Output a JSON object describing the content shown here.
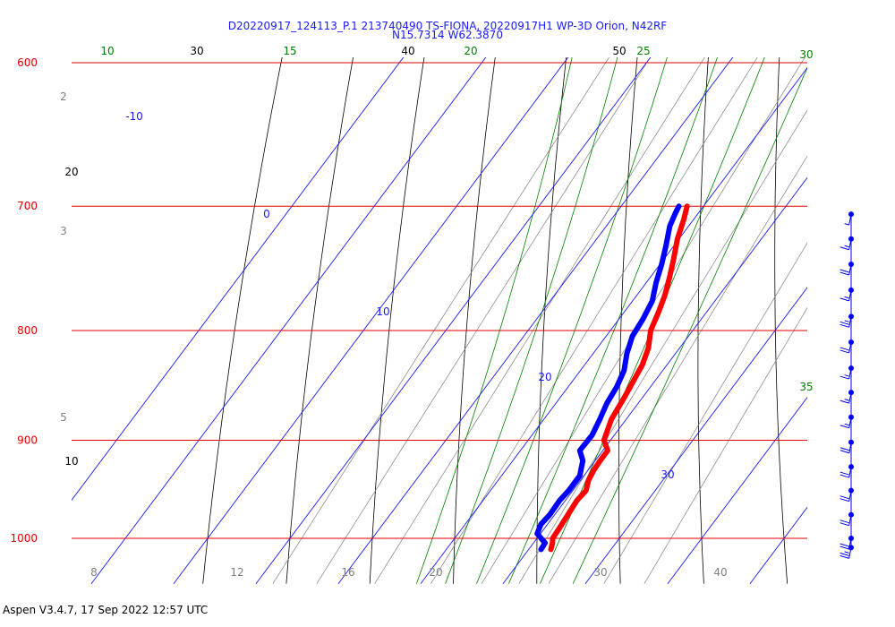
{
  "chart_data": {
    "type": "line",
    "title_line1": "D20220917_124113_P.1 213740490 TS-FIONA, 20220917H1 WP-3D Orion, N42RF",
    "title_line2": "N15.7314 W62.3870",
    "pressure_levels": [
      {
        "label": "600",
        "value": 600
      },
      {
        "label": "700",
        "value": 700
      },
      {
        "label": "800",
        "value": 800
      },
      {
        "label": "900",
        "value": 900
      },
      {
        "label": "1000",
        "value": 1000
      }
    ],
    "temperature_isotherm_labels": [
      {
        "label": "-10",
        "value": -10
      },
      {
        "label": "0",
        "value": 0
      },
      {
        "label": "10",
        "value": 10
      },
      {
        "label": "20",
        "value": 20
      },
      {
        "label": "30",
        "value": 30
      }
    ],
    "dry_adiabat_labels": [
      {
        "label": "10",
        "value": 10
      },
      {
        "label": "20",
        "value": 20
      },
      {
        "label": "30",
        "value": 30
      },
      {
        "label": "40",
        "value": 40
      },
      {
        "label": "50",
        "value": 50
      }
    ],
    "moist_adiabat_labels": [
      {
        "label": "10",
        "value": 10
      },
      {
        "label": "15",
        "value": 15
      },
      {
        "label": "20",
        "value": 20
      },
      {
        "label": "25",
        "value": 25
      },
      {
        "label": "30",
        "value": 30
      },
      {
        "label": "35",
        "value": 35
      }
    ],
    "mixing_ratio_labels": [
      {
        "label": "2",
        "value": 2
      },
      {
        "label": "3",
        "value": 3
      },
      {
        "label": "5",
        "value": 5
      },
      {
        "label": "8",
        "value": 8
      },
      {
        "label": "12",
        "value": 12
      },
      {
        "label": "16",
        "value": 16
      },
      {
        "label": "20",
        "value": 20
      },
      {
        "label": "30",
        "value": 30
      },
      {
        "label": "40",
        "value": 40
      }
    ],
    "series": [
      {
        "color": "#ff0000",
        "points": [
          {
            "p": 1012,
            "t": 22.7
          },
          {
            "p": 1005,
            "t": 22.3
          },
          {
            "p": 1000,
            "t": 21.9
          },
          {
            "p": 990,
            "t": 21.8
          },
          {
            "p": 975,
            "t": 21.6
          },
          {
            "p": 960,
            "t": 21.4
          },
          {
            "p": 950,
            "t": 21.6
          },
          {
            "p": 940,
            "t": 21.0
          },
          {
            "p": 930,
            "t": 20.7
          },
          {
            "p": 920,
            "t": 20.6
          },
          {
            "p": 910,
            "t": 20.6
          },
          {
            "p": 900,
            "t": 19.2
          },
          {
            "p": 880,
            "t": 18.2
          },
          {
            "p": 860,
            "t": 17.8
          },
          {
            "p": 845,
            "t": 17.4
          },
          {
            "p": 830,
            "t": 17.0
          },
          {
            "p": 815,
            "t": 16.2
          },
          {
            "p": 800,
            "t": 14.9
          },
          {
            "p": 785,
            "t": 14.2
          },
          {
            "p": 770,
            "t": 13.4
          },
          {
            "p": 755,
            "t": 12.3
          },
          {
            "p": 740,
            "t": 11.1
          },
          {
            "p": 725,
            "t": 9.8
          },
          {
            "p": 710,
            "t": 8.8
          },
          {
            "p": 700,
            "t": 8.0
          }
        ]
      },
      {
        "color": "#0000ff",
        "points": [
          {
            "p": 1012,
            "t": 21.5
          },
          {
            "p": 1005,
            "t": 21.4
          },
          {
            "p": 995,
            "t": 19.6
          },
          {
            "p": 985,
            "t": 19.2
          },
          {
            "p": 975,
            "t": 19.4
          },
          {
            "p": 960,
            "t": 19.3
          },
          {
            "p": 950,
            "t": 19.5
          },
          {
            "p": 935,
            "t": 19.5
          },
          {
            "p": 920,
            "t": 18.5
          },
          {
            "p": 910,
            "t": 17.2
          },
          {
            "p": 895,
            "t": 17.3
          },
          {
            "p": 880,
            "t": 16.8
          },
          {
            "p": 865,
            "t": 16.2
          },
          {
            "p": 850,
            "t": 15.9
          },
          {
            "p": 835,
            "t": 15.3
          },
          {
            "p": 820,
            "t": 14.1
          },
          {
            "p": 805,
            "t": 13.2
          },
          {
            "p": 790,
            "t": 12.9
          },
          {
            "p": 775,
            "t": 12.4
          },
          {
            "p": 760,
            "t": 11.2
          },
          {
            "p": 745,
            "t": 10.2
          },
          {
            "p": 730,
            "t": 9.0
          },
          {
            "p": 715,
            "t": 7.7
          },
          {
            "p": 705,
            "t": 7.2
          },
          {
            "p": 700,
            "t": 7.0
          }
        ]
      }
    ],
    "wind_barbs": [
      {
        "p": 706,
        "speed": 5,
        "dir": 90
      },
      {
        "p": 725,
        "speed": 15,
        "dir": 100
      },
      {
        "p": 745,
        "speed": 20,
        "dir": 100
      },
      {
        "p": 766,
        "speed": 15,
        "dir": 95
      },
      {
        "p": 788,
        "speed": 25,
        "dir": 80
      },
      {
        "p": 810,
        "speed": 20,
        "dir": 100
      },
      {
        "p": 833,
        "speed": 15,
        "dir": 95
      },
      {
        "p": 855,
        "speed": 15,
        "dir": 100
      },
      {
        "p": 878,
        "speed": 15,
        "dir": 110
      },
      {
        "p": 902,
        "speed": 20,
        "dir": 120
      },
      {
        "p": 926,
        "speed": 20,
        "dir": 110
      },
      {
        "p": 950,
        "speed": 20,
        "dir": 100
      },
      {
        "p": 975,
        "speed": 20,
        "dir": 95
      },
      {
        "p": 1000,
        "speed": 20,
        "dir": 90
      },
      {
        "p": 1010,
        "speed": 25,
        "dir": 90
      }
    ],
    "grid": true
  },
  "footer": "Aspen V3.4.7, 17 Sep 2022  12:57 UTC"
}
